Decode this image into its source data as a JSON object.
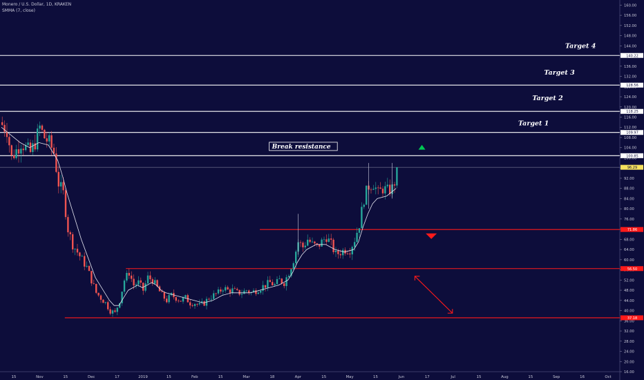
{
  "header": {
    "title": "Monero / U.S. Dollar, 1D, KRAKEN",
    "indicator": "SMMA (7, close)"
  },
  "colors": {
    "background": "#0d0d3b",
    "text": "#c8c8d8",
    "candle_up": "#26a69a",
    "candle_down": "#ef5350",
    "smma_line": "#e6e6f0",
    "level_white": "#ffffff",
    "level_red": "#ff1a1a",
    "price_tag": "#f6e05e",
    "up_marker": "#00c853",
    "down_marker": "#ff1a1a"
  },
  "chart_data": {
    "type": "candlestick",
    "ylim": [
      16,
      162
    ],
    "y_ticks": [
      "160.00",
      "156.00",
      "152.00",
      "148.00",
      "144.00",
      "140.00",
      "136.00",
      "132.00",
      "128.00",
      "124.00",
      "120.00",
      "116.00",
      "112.00",
      "108.00",
      "104.00",
      "100.00",
      "96.00",
      "92.00",
      "88.00",
      "84.00",
      "80.00",
      "76.00",
      "72.00",
      "68.00",
      "64.00",
      "60.00",
      "56.00",
      "52.00",
      "48.00",
      "44.00",
      "40.00",
      "36.00",
      "32.00",
      "28.00",
      "24.00",
      "20.00",
      "16.00"
    ],
    "x_ticks": [
      "15",
      "Nov",
      "15",
      "Dec",
      "17",
      "2019",
      "15",
      "Feb",
      "15",
      "Mar",
      "18",
      "Apr",
      "15",
      "May",
      "15",
      "Jun",
      "17",
      "Jul",
      "15",
      "Aug",
      "15",
      "Sep",
      "16",
      "Oct"
    ],
    "close_series": [
      [
        0,
        113
      ],
      [
        2,
        111
      ],
      [
        4,
        100
      ],
      [
        6,
        103
      ],
      [
        8,
        106
      ],
      [
        10,
        104
      ],
      [
        12,
        102
      ],
      [
        14,
        106
      ],
      [
        16,
        112
      ],
      [
        18,
        108
      ],
      [
        20,
        106
      ],
      [
        22,
        102
      ],
      [
        24,
        90
      ],
      [
        26,
        86
      ],
      [
        28,
        72
      ],
      [
        30,
        66
      ],
      [
        32,
        63
      ],
      [
        34,
        60
      ],
      [
        36,
        57
      ],
      [
        38,
        52
      ],
      [
        40,
        47
      ],
      [
        42,
        45
      ],
      [
        44,
        43
      ],
      [
        46,
        40
      ],
      [
        48,
        39
      ],
      [
        50,
        44
      ],
      [
        52,
        52
      ],
      [
        54,
        55
      ],
      [
        56,
        50
      ],
      [
        58,
        51
      ],
      [
        60,
        48
      ],
      [
        62,
        53
      ],
      [
        64,
        52
      ],
      [
        66,
        49
      ],
      [
        68,
        46
      ],
      [
        70,
        44
      ],
      [
        72,
        46
      ],
      [
        74,
        45
      ],
      [
        76,
        44
      ],
      [
        78,
        45
      ],
      [
        80,
        43
      ],
      [
        82,
        43
      ],
      [
        84,
        42
      ],
      [
        86,
        43
      ],
      [
        88,
        45
      ],
      [
        90,
        46
      ],
      [
        92,
        47
      ],
      [
        94,
        49
      ],
      [
        96,
        48
      ],
      [
        98,
        48
      ],
      [
        100,
        47
      ],
      [
        102,
        47
      ],
      [
        104,
        48
      ],
      [
        106,
        47
      ],
      [
        108,
        48
      ],
      [
        110,
        49
      ],
      [
        112,
        50
      ],
      [
        114,
        51
      ],
      [
        116,
        50
      ],
      [
        118,
        52
      ],
      [
        120,
        51
      ],
      [
        122,
        55
      ],
      [
        124,
        60
      ],
      [
        126,
        67
      ],
      [
        128,
        65
      ],
      [
        130,
        68
      ],
      [
        132,
        66
      ],
      [
        134,
        65
      ],
      [
        136,
        67
      ],
      [
        138,
        69
      ],
      [
        140,
        66
      ],
      [
        142,
        62
      ],
      [
        144,
        63
      ],
      [
        146,
        64
      ],
      [
        148,
        64
      ],
      [
        150,
        68
      ],
      [
        152,
        74
      ],
      [
        154,
        84
      ],
      [
        156,
        89
      ],
      [
        158,
        90
      ],
      [
        160,
        86
      ],
      [
        162,
        88
      ],
      [
        164,
        87
      ],
      [
        166,
        88
      ],
      [
        168,
        93
      ]
    ],
    "smma_series": [
      [
        0,
        112
      ],
      [
        4,
        109
      ],
      [
        8,
        106
      ],
      [
        12,
        104
      ],
      [
        16,
        106
      ],
      [
        20,
        105
      ],
      [
        24,
        99
      ],
      [
        26,
        93
      ],
      [
        28,
        86
      ],
      [
        30,
        80
      ],
      [
        32,
        74
      ],
      [
        34,
        68
      ],
      [
        36,
        63
      ],
      [
        38,
        58
      ],
      [
        40,
        53
      ],
      [
        42,
        50
      ],
      [
        44,
        47
      ],
      [
        46,
        44
      ],
      [
        48,
        42
      ],
      [
        50,
        42
      ],
      [
        52,
        45
      ],
      [
        54,
        48
      ],
      [
        56,
        49
      ],
      [
        58,
        50
      ],
      [
        60,
        49
      ],
      [
        62,
        50
      ],
      [
        64,
        51
      ],
      [
        66,
        50
      ],
      [
        68,
        48
      ],
      [
        70,
        47
      ],
      [
        74,
        46
      ],
      [
        78,
        45
      ],
      [
        82,
        44
      ],
      [
        86,
        43
      ],
      [
        90,
        44
      ],
      [
        94,
        46
      ],
      [
        98,
        47
      ],
      [
        102,
        47
      ],
      [
        106,
        47
      ],
      [
        110,
        48
      ],
      [
        114,
        49
      ],
      [
        118,
        50
      ],
      [
        122,
        52
      ],
      [
        124,
        55
      ],
      [
        126,
        59
      ],
      [
        128,
        62
      ],
      [
        130,
        64
      ],
      [
        134,
        66
      ],
      [
        138,
        66
      ],
      [
        142,
        64
      ],
      [
        146,
        63
      ],
      [
        150,
        64
      ],
      [
        152,
        67
      ],
      [
        154,
        73
      ],
      [
        156,
        78
      ],
      [
        158,
        82
      ],
      [
        160,
        84
      ],
      [
        164,
        85
      ],
      [
        168,
        88
      ]
    ],
    "levels": [
      {
        "price": 140.22,
        "label": "140.22",
        "color": "white",
        "full": true
      },
      {
        "price": 128.56,
        "label": "128.56",
        "color": "white",
        "full": true
      },
      {
        "price": 118.25,
        "label": "118.25",
        "color": "white",
        "full": true
      },
      {
        "price": 109.97,
        "label": "109.97",
        "color": "white",
        "full": true
      },
      {
        "price": 100.85,
        "label": "100.85",
        "color": "white",
        "full": true
      },
      {
        "price": 71.86,
        "label": "71.86",
        "color": "red",
        "start": 110
      },
      {
        "price": 56.5,
        "label": "56.50",
        "color": "red",
        "start": 53
      },
      {
        "price": 37.18,
        "label": "37.18",
        "color": "red",
        "start": 27
      }
    ],
    "last_price": {
      "price": 96.29,
      "label": "96.29"
    },
    "annotations": [
      {
        "text": "Target 4",
        "price": 144,
        "bar": 240
      },
      {
        "text": "Target 3",
        "price": 133.5,
        "bar": 231
      },
      {
        "text": "Target 2",
        "price": 123.5,
        "bar": 226
      },
      {
        "text": "Target 1",
        "price": 113.5,
        "bar": 220
      }
    ],
    "box_annotation": {
      "text": "Break resistance",
      "price": 104.5,
      "bar_from": 114,
      "bar_to": 143
    }
  }
}
